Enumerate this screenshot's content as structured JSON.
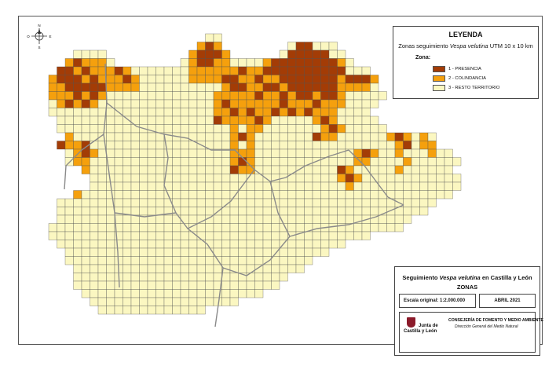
{
  "legend": {
    "title": "LEYENDA",
    "subtitle_prefix": "Zonas seguimiento ",
    "subtitle_species": "Vespa velutina",
    "subtitle_suffix": " UTM 10 x 10 km",
    "zone_label": "Zona:",
    "items": [
      {
        "label": "1 - PRESENCIA",
        "color": "#a33c06"
      },
      {
        "label": "2 - COLINDANCIA",
        "color": "#f5a00d"
      },
      {
        "label": "3 - RESTO TERRITORIO",
        "color": "#fbf7c1"
      }
    ]
  },
  "titlebox": {
    "line1_prefix": "Seguimiento ",
    "line1_species": "Vespa velutina",
    "line1_suffix": " en Castilla y León",
    "line2": "ZONAS",
    "scale": "Escala original: 1:2.000.000",
    "date": "ABRIL 2021",
    "org": "CONSEJERÍA DE FOMENTO Y  MEDIO AMBIENTE",
    "org_sub": "Dirección General del Medio Natural",
    "logo_line1": "Junta de",
    "logo_line2": "Castilla y León"
  },
  "compass": {
    "n": "N",
    "s": "S",
    "e": "E",
    "o": "O"
  },
  "colors": {
    "presence": "#a33c06",
    "adjacent": "#f5a00d",
    "rest": "#fbf7c1",
    "grid_line": "#555555",
    "province_border": "#8a8a8a"
  }
}
